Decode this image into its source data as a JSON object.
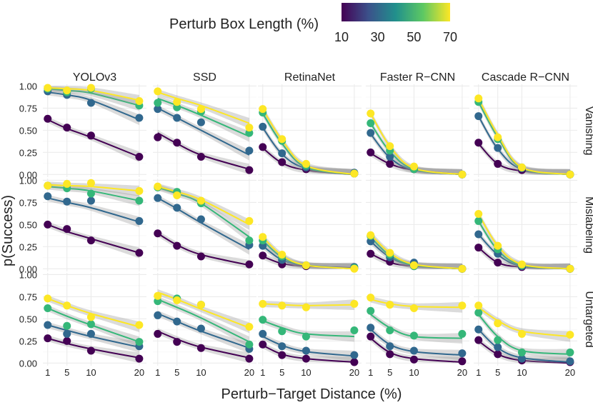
{
  "chart_data": {
    "type": "scatter",
    "description_title": "Perturb Box Length (%)",
    "legend": {
      "title": "Perturb Box Length (%)",
      "range": [
        10,
        70
      ],
      "ticks": [
        10,
        30,
        50,
        70
      ],
      "colors": [
        "#440154",
        "#3b528b",
        "#21908c",
        "#5dc863",
        "#fde725"
      ]
    },
    "xlabel": "Perturb−Target Distance (%)",
    "ylabel": "p(Success)",
    "x_ticks": [
      1,
      5,
      10,
      20
    ],
    "x_tick_labels": [
      "1",
      "5",
      "10",
      "20"
    ],
    "xlim": [
      0,
      21.5
    ],
    "y_ticks": [
      0,
      0.25,
      0.5,
      0.75,
      1.0
    ],
    "y_tick_labels": [
      "0.00",
      "0.25",
      "0.50",
      "0.75",
      "1.00"
    ],
    "ylim": [
      -0.03,
      1.02
    ],
    "models": [
      "YOLOv3",
      "SSD",
      "RetinaNet",
      "Faster R−CNN",
      "Cascade R−CNN"
    ],
    "attacks": [
      "Vanishing",
      "Mislabeling",
      "Untargeted"
    ],
    "box_lengths": [
      10,
      30,
      50,
      70
    ],
    "series_colors": {
      "10": "#440154",
      "30": "#31688e",
      "50": "#35b779",
      "70": "#fde725"
    },
    "x": [
      1,
      5,
      10,
      20
    ],
    "points": {
      "Vanishing": {
        "YOLOv3": {
          "10": [
            0.63,
            0.53,
            0.44,
            0.2
          ],
          "30": [
            0.94,
            0.9,
            0.81,
            0.64
          ],
          "50": [
            0.97,
            0.93,
            0.97,
            0.78
          ],
          "70": [
            0.98,
            0.95,
            0.98,
            0.83
          ]
        },
        "SSD": {
          "10": [
            0.42,
            0.36,
            0.2,
            0.05
          ],
          "30": [
            0.74,
            0.64,
            0.59,
            0.27
          ],
          "50": [
            0.81,
            0.76,
            0.71,
            0.47
          ],
          "70": [
            0.94,
            0.82,
            0.74,
            0.53
          ]
        },
        "RetinaNet": {
          "10": [
            0.31,
            0.14,
            0.06,
            0.01
          ],
          "30": [
            0.54,
            0.24,
            0.08,
            0.02
          ],
          "50": [
            0.7,
            0.38,
            0.1,
            0.01
          ],
          "70": [
            0.74,
            0.4,
            0.12,
            0.01
          ]
        },
        "Faster R−CNN": {
          "10": [
            0.25,
            0.12,
            0.06,
            0.0
          ],
          "30": [
            0.47,
            0.2,
            0.07,
            0.0
          ],
          "50": [
            0.58,
            0.27,
            0.06,
            0.0
          ],
          "70": [
            0.69,
            0.32,
            0.09,
            0.0
          ]
        },
        "Cascade R−CNN": {
          "10": [
            0.36,
            0.12,
            0.05,
            0.0
          ],
          "30": [
            0.66,
            0.3,
            0.07,
            0.0
          ],
          "50": [
            0.82,
            0.4,
            0.08,
            0.0
          ],
          "70": [
            0.86,
            0.42,
            0.08,
            0.0
          ]
        }
      },
      "Mislabeling": {
        "YOLOv3": {
          "10": [
            0.5,
            0.45,
            0.32,
            0.18
          ],
          "30": [
            0.82,
            0.76,
            0.77,
            0.54
          ],
          "50": [
            0.94,
            0.91,
            0.85,
            0.77
          ],
          "70": [
            0.94,
            0.96,
            0.97,
            0.88
          ]
        },
        "SSD": {
          "10": [
            0.4,
            0.26,
            0.14,
            0.05
          ],
          "30": [
            0.8,
            0.69,
            0.56,
            0.27
          ],
          "50": [
            0.92,
            0.87,
            0.74,
            0.32
          ],
          "70": [
            0.93,
            0.83,
            0.77,
            0.54
          ]
        },
        "RetinaNet": {
          "10": [
            0.15,
            0.05,
            0.03,
            0.01
          ],
          "30": [
            0.26,
            0.1,
            0.04,
            0.02
          ],
          "50": [
            0.32,
            0.14,
            0.04,
            0.01
          ],
          "70": [
            0.36,
            0.16,
            0.04,
            0.0
          ]
        },
        "Faster R−CNN": {
          "10": [
            0.17,
            0.08,
            0.03,
            0.0
          ],
          "30": [
            0.31,
            0.13,
            0.07,
            0.0
          ],
          "50": [
            0.37,
            0.16,
            0.03,
            0.0
          ],
          "70": [
            0.38,
            0.18,
            0.04,
            0.0
          ]
        },
        "Cascade R−CNN": {
          "10": [
            0.24,
            0.07,
            0.02,
            0.0
          ],
          "30": [
            0.39,
            0.17,
            0.03,
            0.0
          ],
          "50": [
            0.54,
            0.22,
            0.04,
            0.0
          ],
          "70": [
            0.62,
            0.26,
            0.05,
            0.0
          ]
        }
      },
      "Untargeted": {
        "YOLOv3": {
          "10": [
            0.28,
            0.25,
            0.14,
            0.05
          ],
          "30": [
            0.43,
            0.33,
            0.33,
            0.19
          ],
          "50": [
            0.62,
            0.42,
            0.44,
            0.24
          ],
          "70": [
            0.73,
            0.65,
            0.52,
            0.43
          ]
        },
        "SSD": {
          "10": [
            0.33,
            0.24,
            0.17,
            0.05
          ],
          "30": [
            0.54,
            0.47,
            0.39,
            0.16
          ],
          "50": [
            0.7,
            0.73,
            0.66,
            0.21
          ],
          "70": [
            0.76,
            0.71,
            0.66,
            0.41
          ]
        },
        "RetinaNet": {
          "10": [
            0.21,
            0.09,
            0.05,
            0.01
          ],
          "30": [
            0.33,
            0.19,
            0.14,
            0.09
          ],
          "50": [
            0.49,
            0.36,
            0.3,
            0.37
          ],
          "70": [
            0.67,
            0.65,
            0.63,
            0.67
          ]
        },
        "Faster R−CNN": {
          "10": [
            0.3,
            0.1,
            0.04,
            0.02
          ],
          "30": [
            0.4,
            0.19,
            0.14,
            0.11
          ],
          "50": [
            0.59,
            0.37,
            0.31,
            0.33
          ],
          "70": [
            0.74,
            0.66,
            0.62,
            0.65
          ]
        },
        "Cascade R−CNN": {
          "10": [
            0.26,
            0.1,
            0.03,
            0.01
          ],
          "30": [
            0.38,
            0.18,
            0.05,
            0.02
          ],
          "50": [
            0.57,
            0.26,
            0.12,
            0.12
          ],
          "70": [
            0.65,
            0.45,
            0.33,
            0.32
          ]
        }
      }
    },
    "fits": {
      "Vanishing": {
        "YOLOv3": {
          "10": [
            0.62,
            0.52,
            0.42,
            0.2
          ],
          "30": [
            0.93,
            0.9,
            0.84,
            0.62
          ],
          "50": [
            0.97,
            0.95,
            0.92,
            0.78
          ],
          "70": [
            0.98,
            0.97,
            0.95,
            0.84
          ]
        },
        "SSD": {
          "10": [
            0.47,
            0.35,
            0.22,
            0.06
          ],
          "30": [
            0.75,
            0.64,
            0.5,
            0.22
          ],
          "50": [
            0.86,
            0.78,
            0.67,
            0.43
          ],
          "70": [
            0.93,
            0.86,
            0.78,
            0.58
          ]
        },
        "RetinaNet": {
          "10": [
            0.3,
            0.13,
            0.05,
            0.0
          ],
          "30": [
            0.53,
            0.23,
            0.07,
            0.0
          ],
          "50": [
            0.69,
            0.35,
            0.08,
            0.0
          ],
          "70": [
            0.74,
            0.39,
            0.1,
            0.0
          ]
        },
        "Faster R−CNN": {
          "10": [
            0.24,
            0.12,
            0.05,
            0.0
          ],
          "30": [
            0.46,
            0.19,
            0.05,
            0.0
          ],
          "50": [
            0.58,
            0.26,
            0.06,
            0.0
          ],
          "70": [
            0.69,
            0.32,
            0.07,
            0.0
          ]
        },
        "Cascade R−CNN": {
          "10": [
            0.35,
            0.12,
            0.04,
            0.0
          ],
          "30": [
            0.66,
            0.29,
            0.06,
            0.0
          ],
          "50": [
            0.82,
            0.42,
            0.07,
            0.0
          ],
          "70": [
            0.86,
            0.45,
            0.08,
            0.0
          ]
        }
      },
      "Mislabeling": {
        "YOLOv3": {
          "10": [
            0.5,
            0.42,
            0.34,
            0.18
          ],
          "30": [
            0.8,
            0.75,
            0.69,
            0.53
          ],
          "50": [
            0.93,
            0.91,
            0.88,
            0.77
          ],
          "70": [
            0.95,
            0.94,
            0.93,
            0.88
          ]
        },
        "SSD": {
          "10": [
            0.4,
            0.27,
            0.16,
            0.04
          ],
          "30": [
            0.8,
            0.68,
            0.52,
            0.22
          ],
          "50": [
            0.92,
            0.85,
            0.74,
            0.36
          ],
          "70": [
            0.93,
            0.87,
            0.78,
            0.5
          ]
        },
        "RetinaNet": {
          "10": [
            0.14,
            0.06,
            0.03,
            0.01
          ],
          "30": [
            0.26,
            0.1,
            0.04,
            0.0
          ],
          "50": [
            0.32,
            0.13,
            0.04,
            0.0
          ],
          "70": [
            0.36,
            0.15,
            0.04,
            0.0
          ]
        },
        "Faster R−CNN": {
          "10": [
            0.17,
            0.07,
            0.03,
            0.0
          ],
          "30": [
            0.31,
            0.13,
            0.04,
            0.0
          ],
          "50": [
            0.36,
            0.15,
            0.04,
            0.0
          ],
          "70": [
            0.39,
            0.18,
            0.05,
            0.0
          ]
        },
        "Cascade R−CNN": {
          "10": [
            0.24,
            0.07,
            0.02,
            0.0
          ],
          "30": [
            0.39,
            0.16,
            0.03,
            0.0
          ],
          "50": [
            0.54,
            0.21,
            0.04,
            0.0
          ],
          "70": [
            0.62,
            0.26,
            0.05,
            0.0
          ]
        }
      },
      "Untargeted": {
        "YOLOv3": {
          "10": [
            0.28,
            0.22,
            0.16,
            0.06
          ],
          "30": [
            0.43,
            0.37,
            0.3,
            0.18
          ],
          "50": [
            0.62,
            0.53,
            0.43,
            0.24
          ],
          "70": [
            0.73,
            0.65,
            0.56,
            0.41
          ]
        },
        "SSD": {
          "10": [
            0.36,
            0.27,
            0.18,
            0.06
          ],
          "30": [
            0.56,
            0.47,
            0.36,
            0.17
          ],
          "50": [
            0.72,
            0.63,
            0.51,
            0.24
          ],
          "70": [
            0.8,
            0.72,
            0.61,
            0.4
          ]
        },
        "RetinaNet": {
          "10": [
            0.2,
            0.1,
            0.05,
            0.01
          ],
          "30": [
            0.3,
            0.2,
            0.13,
            0.08
          ],
          "50": [
            0.48,
            0.4,
            0.33,
            0.3
          ],
          "70": [
            0.67,
            0.66,
            0.65,
            0.66
          ]
        },
        "Faster R−CNN": {
          "10": [
            0.28,
            0.12,
            0.05,
            0.01
          ],
          "30": [
            0.38,
            0.21,
            0.13,
            0.09
          ],
          "50": [
            0.55,
            0.4,
            0.3,
            0.28
          ],
          "70": [
            0.72,
            0.67,
            0.64,
            0.63
          ]
        },
        "Cascade R−CNN": {
          "10": [
            0.25,
            0.1,
            0.03,
            0.0
          ],
          "30": [
            0.38,
            0.17,
            0.06,
            0.01
          ],
          "50": [
            0.55,
            0.3,
            0.14,
            0.1
          ],
          "70": [
            0.63,
            0.48,
            0.36,
            0.3
          ]
        }
      }
    }
  }
}
